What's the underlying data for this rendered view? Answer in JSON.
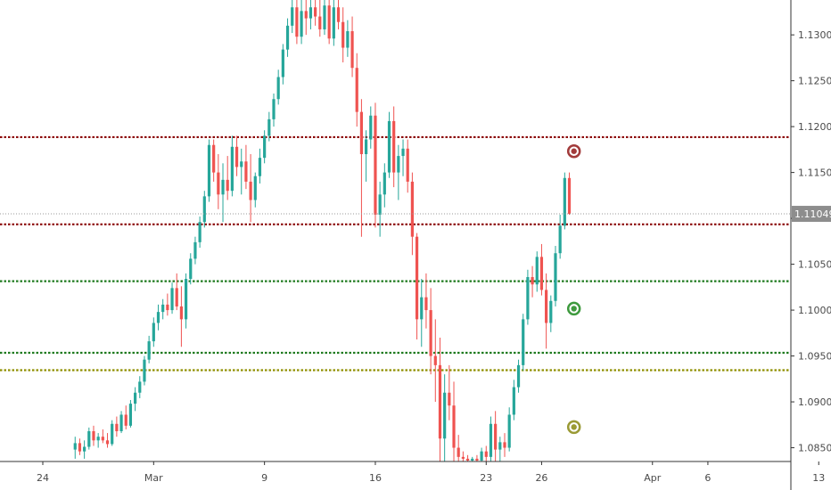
{
  "chart_data": {
    "type": "candlestick",
    "instrument_note": "",
    "y_ticks": [
      1.13,
      1.125,
      1.12,
      1.115,
      1.11,
      1.105,
      1.1,
      1.095,
      1.09,
      1.085
    ],
    "y_tick_labels": [
      "1.13000",
      "1.12500",
      "1.12000",
      "1.11500",
      "1.11000",
      "1.10500",
      "1.10000",
      "1.09500",
      "1.09000",
      "1.08500"
    ],
    "ylim": [
      1.0835,
      1.1338
    ],
    "x_ticks": [
      {
        "label": "24",
        "index": 0
      },
      {
        "label": "Mar",
        "index": 24
      },
      {
        "label": "9",
        "index": 48
      },
      {
        "label": "16",
        "index": 72
      },
      {
        "label": "23",
        "index": 96
      },
      {
        "label": "26",
        "index": 108
      },
      {
        "label": "Apr",
        "index": 132
      },
      {
        "label": "6",
        "index": 144
      },
      {
        "label": "13",
        "index": 168
      }
    ],
    "x_count": 190,
    "current_price": 1.11049,
    "current_price_label": "1.11049",
    "horizontal_levels": [
      {
        "price": 1.11885,
        "color": "#8b0000",
        "style": "dotted"
      },
      {
        "price": 1.10935,
        "color": "#8b0000",
        "style": "dotted"
      },
      {
        "price": 1.10315,
        "color": "#1f7a1f",
        "style": "dotted"
      },
      {
        "price": 1.09535,
        "color": "#1f7a1f",
        "style": "dotted"
      },
      {
        "price": 1.09345,
        "color": "#8f8f00",
        "style": "dotted"
      }
    ],
    "markers": [
      {
        "index": 115,
        "price": 1.11732,
        "color": "#a23b3b",
        "fill": "#a23b3b"
      },
      {
        "index": 115,
        "price": 1.10016,
        "color": "#3e9a3e",
        "fill": "#3e9a3e"
      },
      {
        "index": 115,
        "price": 1.08725,
        "color": "#9a9a35",
        "fill": "#9a9a35"
      }
    ],
    "candles": [
      [
        1.0848,
        1.0862,
        1.0838,
        1.0855
      ],
      [
        1.0855,
        1.086,
        1.0842,
        1.0846
      ],
      [
        1.0846,
        1.0858,
        1.0838,
        1.0851
      ],
      [
        1.0851,
        1.0872,
        1.0848,
        1.0868
      ],
      [
        1.0868,
        1.0874,
        1.0852,
        1.0858
      ],
      [
        1.0858,
        1.0866,
        1.085,
        1.0862
      ],
      [
        1.0862,
        1.087,
        1.0855,
        1.0858
      ],
      [
        1.0858,
        1.0866,
        1.085,
        1.0854
      ],
      [
        1.0854,
        1.088,
        1.0852,
        1.0876
      ],
      [
        1.0876,
        1.0884,
        1.0862,
        1.0868
      ],
      [
        1.0868,
        1.089,
        1.0866,
        1.0886
      ],
      [
        1.0886,
        1.0896,
        1.087,
        1.0874
      ],
      [
        1.0874,
        1.0902,
        1.0872,
        1.0898
      ],
      [
        1.0898,
        1.0916,
        1.089,
        1.091
      ],
      [
        1.091,
        1.0928,
        1.0904,
        1.0922
      ],
      [
        1.0922,
        1.095,
        1.0918,
        1.0946
      ],
      [
        1.0946,
        1.0972,
        1.0942,
        1.0966
      ],
      [
        1.0966,
        1.0992,
        1.096,
        1.0986
      ],
      [
        1.0986,
        1.1006,
        1.0978,
        1.0998
      ],
      [
        1.0998,
        1.1012,
        1.099,
        1.1006
      ],
      [
        1.1006,
        1.1018,
        1.0994,
        1.1
      ],
      [
        1.1,
        1.103,
        1.0996,
        1.1024
      ],
      [
        1.1024,
        1.104,
        1.1,
        1.1004
      ],
      [
        1.1004,
        1.1026,
        1.096,
        1.099
      ],
      [
        1.099,
        1.104,
        1.098,
        1.1034
      ],
      [
        1.1034,
        1.1062,
        1.1028,
        1.1056
      ],
      [
        1.1056,
        1.108,
        1.105,
        1.1074
      ],
      [
        1.1074,
        1.1102,
        1.1068,
        1.1096
      ],
      [
        1.1096,
        1.113,
        1.109,
        1.1124
      ],
      [
        1.1124,
        1.1186,
        1.1118,
        1.118
      ],
      [
        1.118,
        1.1186,
        1.114,
        1.115
      ],
      [
        1.115,
        1.117,
        1.111,
        1.1126
      ],
      [
        1.1126,
        1.116,
        1.1096,
        1.1142
      ],
      [
        1.1142,
        1.1168,
        1.112,
        1.113
      ],
      [
        1.113,
        1.119,
        1.1124,
        1.1178
      ],
      [
        1.1178,
        1.119,
        1.1146,
        1.1156
      ],
      [
        1.1156,
        1.1176,
        1.1126,
        1.1162
      ],
      [
        1.1162,
        1.118,
        1.1132,
        1.114
      ],
      [
        1.114,
        1.117,
        1.1096,
        1.112
      ],
      [
        1.112,
        1.115,
        1.1112,
        1.1146
      ],
      [
        1.1146,
        1.1176,
        1.1138,
        1.1166
      ],
      [
        1.1166,
        1.1196,
        1.116,
        1.119
      ],
      [
        1.119,
        1.1216,
        1.1184,
        1.1208
      ],
      [
        1.1208,
        1.1236,
        1.12,
        1.123
      ],
      [
        1.123,
        1.1262,
        1.1224,
        1.1254
      ],
      [
        1.1254,
        1.129,
        1.1246,
        1.1284
      ],
      [
        1.1284,
        1.1318,
        1.1276,
        1.131
      ],
      [
        1.131,
        1.1338,
        1.1302,
        1.133
      ],
      [
        1.133,
        1.1338,
        1.129,
        1.1298
      ],
      [
        1.1298,
        1.1338,
        1.129,
        1.1326
      ],
      [
        1.1326,
        1.1338,
        1.13,
        1.1318
      ],
      [
        1.1318,
        1.1338,
        1.1306,
        1.133
      ],
      [
        1.133,
        1.1338,
        1.131,
        1.132
      ],
      [
        1.132,
        1.1338,
        1.1298,
        1.1306
      ],
      [
        1.1306,
        1.1338,
        1.13,
        1.1332
      ],
      [
        1.1332,
        1.1338,
        1.129,
        1.1296
      ],
      [
        1.1296,
        1.1338,
        1.1288,
        1.133
      ],
      [
        1.133,
        1.1338,
        1.1306,
        1.1314
      ],
      [
        1.1314,
        1.133,
        1.127,
        1.1286
      ],
      [
        1.1286,
        1.1316,
        1.1276,
        1.1304
      ],
      [
        1.1304,
        1.132,
        1.1254,
        1.1264
      ],
      [
        1.1264,
        1.128,
        1.12,
        1.1216
      ],
      [
        1.1216,
        1.123,
        1.108,
        1.117
      ],
      [
        1.117,
        1.1196,
        1.114,
        1.1186
      ],
      [
        1.1186,
        1.1222,
        1.1176,
        1.1212
      ],
      [
        1.1212,
        1.1226,
        1.109,
        1.1104
      ],
      [
        1.1104,
        1.114,
        1.108,
        1.1126
      ],
      [
        1.1126,
        1.116,
        1.1112,
        1.115
      ],
      [
        1.115,
        1.1216,
        1.1144,
        1.1206
      ],
      [
        1.1206,
        1.1222,
        1.1134,
        1.115
      ],
      [
        1.115,
        1.118,
        1.112,
        1.1168
      ],
      [
        1.1168,
        1.1186,
        1.1146,
        1.1176
      ],
      [
        1.1176,
        1.1186,
        1.1128,
        1.114
      ],
      [
        1.114,
        1.115,
        1.106,
        1.108
      ],
      [
        1.108,
        1.1084,
        1.0968,
        1.099
      ],
      [
        1.099,
        1.1034,
        1.096,
        1.1014
      ],
      [
        1.1014,
        1.104,
        1.098,
        1.1
      ],
      [
        1.1,
        1.1024,
        1.093,
        1.095
      ],
      [
        1.095,
        1.099,
        1.09,
        1.094
      ],
      [
        1.094,
        1.097,
        1.0835,
        1.086
      ],
      [
        1.086,
        1.093,
        1.0835,
        1.091
      ],
      [
        1.091,
        1.094,
        1.088,
        1.0896
      ],
      [
        1.0896,
        1.0922,
        1.0835,
        1.085
      ],
      [
        1.085,
        1.0864,
        1.0835,
        1.084
      ],
      [
        1.084,
        1.0846,
        1.0835,
        1.0838
      ],
      [
        1.0838,
        1.0842,
        1.0835,
        1.0836
      ],
      [
        1.0836,
        1.084,
        1.0835,
        1.0838
      ],
      [
        1.0838,
        1.0842,
        1.0835,
        1.0836
      ],
      [
        1.0836,
        1.085,
        1.0835,
        1.0846
      ],
      [
        1.0846,
        1.0852,
        1.0835,
        1.084
      ],
      [
        1.084,
        1.0884,
        1.0835,
        1.0876
      ],
      [
        1.0876,
        1.089,
        1.0835,
        1.0848
      ],
      [
        1.0848,
        1.0862,
        1.0835,
        1.0856
      ],
      [
        1.0856,
        1.0866,
        1.084,
        1.085
      ],
      [
        1.085,
        1.0894,
        1.0846,
        1.0886
      ],
      [
        1.0886,
        1.0924,
        1.088,
        1.0916
      ],
      [
        1.0916,
        1.0946,
        1.091,
        1.094
      ],
      [
        1.094,
        1.0996,
        1.0934,
        1.099
      ],
      [
        1.099,
        1.1044,
        1.0984,
        1.1036
      ],
      [
        1.1036,
        1.1048,
        1.1014,
        1.1028
      ],
      [
        1.1028,
        1.1064,
        1.102,
        1.1058
      ],
      [
        1.1058,
        1.1072,
        1.1016,
        1.1022
      ],
      [
        1.1022,
        1.104,
        1.0958,
        1.0986
      ],
      [
        1.0986,
        1.1016,
        1.0976,
        1.101
      ],
      [
        1.101,
        1.107,
        1.1004,
        1.1062
      ],
      [
        1.1062,
        1.1104,
        1.1056,
        1.1092
      ],
      [
        1.1092,
        1.115,
        1.1088,
        1.1144
      ],
      [
        1.1144,
        1.115,
        1.1104,
        1.1105
      ]
    ],
    "candle_x_start_index": 7
  },
  "colors": {
    "up": "#26a69a",
    "down": "#ef5350",
    "price_line": "#9a9a9a",
    "price_tag_bg": "#8d8d8d",
    "axis_line": "#333333",
    "background": "#ffffff"
  }
}
